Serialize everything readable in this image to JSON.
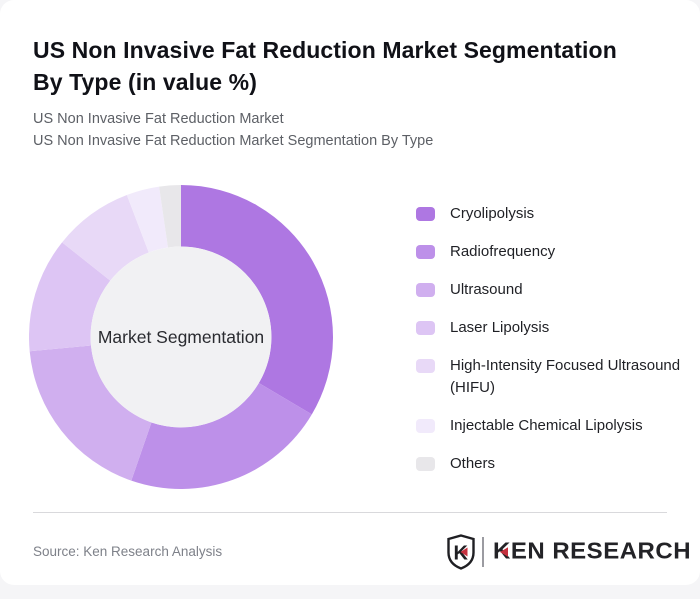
{
  "page": {
    "background": "#f5f5f7",
    "card_background": "#ffffff"
  },
  "header": {
    "title_line1": "US Non Invasive Fat Reduction Market Segmentation",
    "title_line2": "By Type (in value %)",
    "subtitle_line1": "US Non Invasive Fat Reduction Market",
    "subtitle_line2": "US Non Invasive Fat Reduction Market Segmentation By Type"
  },
  "chart_data": {
    "type": "pie",
    "variant": "donut",
    "title": "US Non Invasive Fat Reduction Market Segmentation By Type (in value %)",
    "center_label": "Market Segmentation",
    "unit": "% of market value",
    "start_angle_deg": 0,
    "direction": "clockwise",
    "inner_radius_ratio": 0.595,
    "hole_color": "#f1f1f3",
    "legend_position": "right",
    "categories": [
      "Cryolipolysis",
      "Radiofrequency",
      "Ultrasound",
      "Laser Lipolysis",
      "High-Intensity Focused Ultrasound (HIFU)",
      "Injectable Chemical Lipolysis",
      "Others"
    ],
    "values": [
      33.5,
      21.8,
      18.2,
      12.2,
      8.5,
      3.5,
      2.3
    ],
    "colors": [
      "#ae77e2",
      "#bd90e9",
      "#d0afef",
      "#ddc5f4",
      "#e8d9f7",
      "#f1eafb",
      "#e8e7ea"
    ]
  },
  "footer": {
    "source": "Source: Ken Research Analysis",
    "logo_badge_letter": "K",
    "logo_wordmark": "KEN RESEARCH",
    "logo_accent_color": "#c5303e",
    "logo_text_color": "#232327"
  }
}
